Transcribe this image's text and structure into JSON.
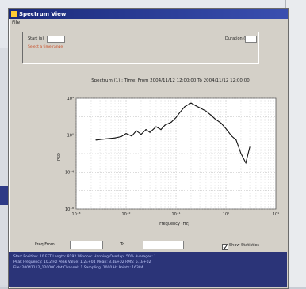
{
  "window": {
    "title": "Spectrum View",
    "menu": "File"
  },
  "controls": {
    "left_label": "Start (s)",
    "left_value": "",
    "right_label": "Duration (s)",
    "right_value": "",
    "warning": "Select a time range"
  },
  "plot": {
    "title": "Spectrum (1) :  Time: From  2004/11/12 12:00:00  To  2004/11/12 12:00:00",
    "xlabel": "Frequency (Hz)",
    "ylabel": "PSD"
  },
  "range": {
    "from_label": "Freq From",
    "to_label": "To",
    "from_value": "",
    "to_value": ""
  },
  "checkbox": {
    "label": "Show Statistics",
    "checked": true
  },
  "status": {
    "lines": [
      "Start Position: 10     FFT Length: 8192    Window: Hanning    Overlap: 50%    Averages: 1",
      "Peak Frequency: 10.2 Hz     Peak Value: 1.2E+04     Mean: 3.4E+02     RMS: 5.1E+02",
      "File: 20041112_120000.dat     Channel: 1     Sampling: 1000 Hz     Points: 16384"
    ]
  },
  "chart_data": {
    "type": "line",
    "xscale": "log",
    "yscale": "log",
    "xlim": [
      0.001,
      10
    ],
    "ylim": [
      1e-08,
      10000
    ],
    "xticks": [
      "10⁻³",
      "10⁻²",
      "10⁻¹",
      "10⁰",
      "10¹"
    ],
    "yticks": [
      "10⁻⁸",
      "10⁻⁴",
      "10⁰",
      "10⁴"
    ],
    "grid": true,
    "series": [
      {
        "x": [
          0.0025,
          0.004,
          0.006,
          0.008,
          0.01,
          0.013,
          0.016,
          0.02,
          0.025,
          0.03,
          0.04,
          0.05,
          0.06,
          0.08,
          0.1,
          0.12,
          0.15,
          0.2,
          0.25,
          0.3,
          0.4,
          0.5,
          0.6,
          0.8,
          1.0,
          1.3,
          1.6,
          2.0,
          2.5,
          3.0
        ],
        "y": [
          0.3,
          0.4,
          0.5,
          0.7,
          1.5,
          0.8,
          3.0,
          1.2,
          4.0,
          2.0,
          8.0,
          4.0,
          12.0,
          25.0,
          80.0,
          300.0,
          1200.0,
          3000.0,
          1500.0,
          900.0,
          400.0,
          150.0,
          60.0,
          20.0,
          5.0,
          0.8,
          0.3,
          0.01,
          0.001,
          0.05
        ]
      }
    ]
  }
}
